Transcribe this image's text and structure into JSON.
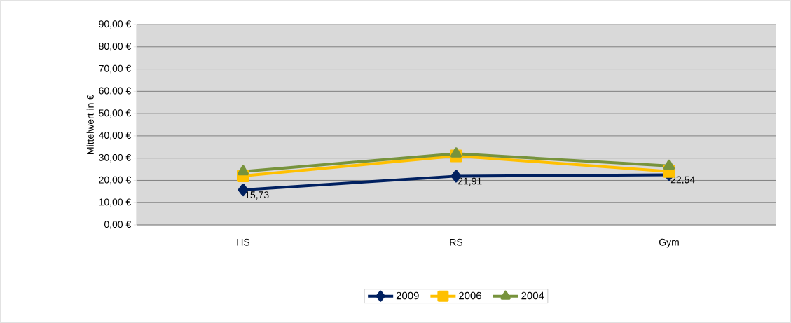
{
  "chart_data": {
    "type": "line",
    "ylabel": "Mittelwert in €",
    "categories": [
      "HS",
      "RS",
      "Gym"
    ],
    "series": [
      {
        "name": "2009",
        "color": "#002060",
        "marker": "diamond",
        "values": [
          15.73,
          21.91,
          22.54
        ],
        "value_labels": [
          "15,73",
          "21,91",
          "22,54"
        ]
      },
      {
        "name": "2006",
        "color": "#ffc000",
        "marker": "square",
        "values": [
          22,
          31,
          24
        ]
      },
      {
        "name": "2004",
        "color": "#77933c",
        "marker": "triangle",
        "values": [
          24,
          32,
          26.5
        ]
      }
    ],
    "ylim": [
      0,
      90
    ],
    "yticks": [
      {
        "value": 0,
        "label": "0,00 €"
      },
      {
        "value": 10,
        "label": "10,00 €"
      },
      {
        "value": 20,
        "label": "20,00 €"
      },
      {
        "value": 30,
        "label": "30,00 €"
      },
      {
        "value": 40,
        "label": "40,00 €"
      },
      {
        "value": 50,
        "label": "50,00 €"
      },
      {
        "value": 60,
        "label": "60,00 €"
      },
      {
        "value": 70,
        "label": "70,00 €"
      },
      {
        "value": 80,
        "label": "80,00 €"
      },
      {
        "value": 90,
        "label": "90,00 €"
      }
    ],
    "grid": "y",
    "legend": "bottom",
    "line_style": "solid"
  }
}
